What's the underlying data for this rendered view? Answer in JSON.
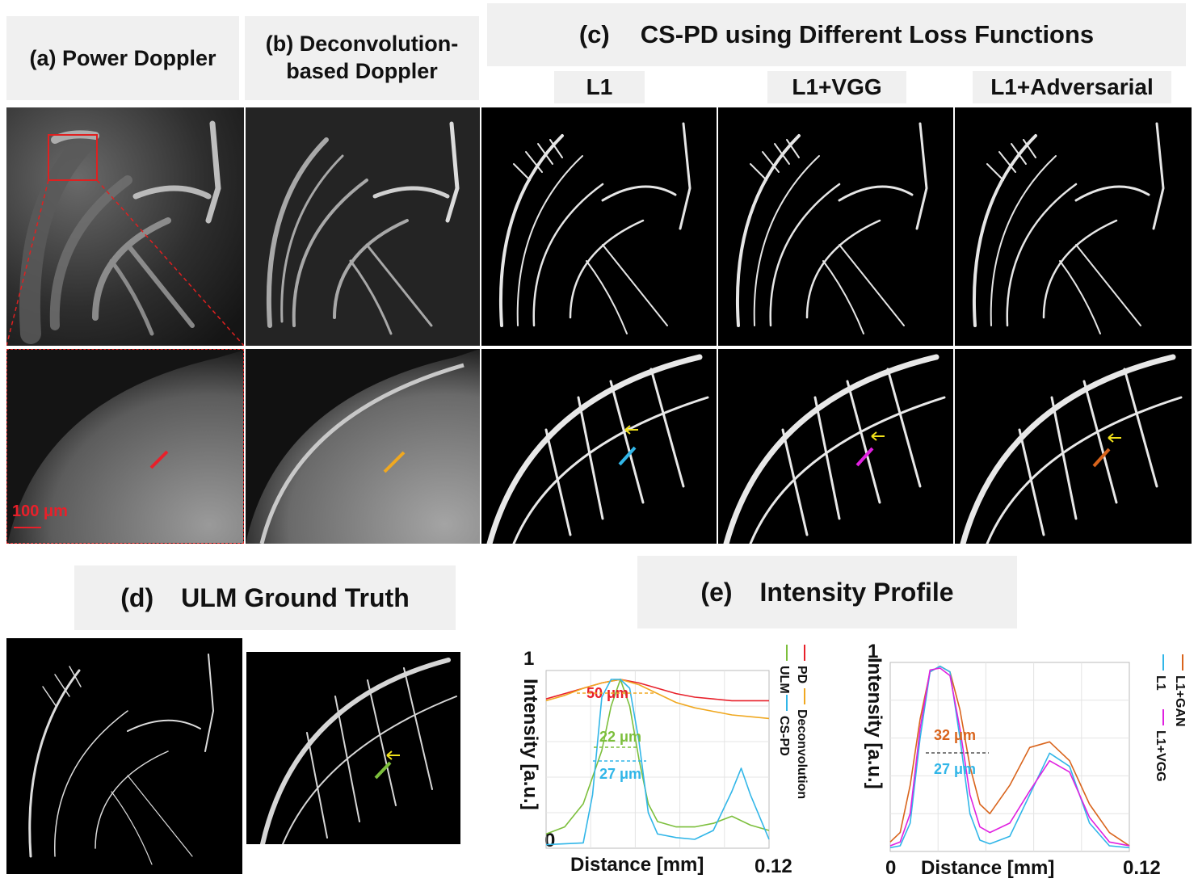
{
  "labels": {
    "a": "(a) Power Doppler",
    "b_line1": "(b) Deconvolution-",
    "b_line2": "based Doppler",
    "c_prefix": "(c)",
    "c_title": "CS-PD using Different Loss Functions",
    "c_l1": "L1",
    "c_l1vgg": "L1+VGG",
    "c_l1adv": "L1+Adversarial",
    "d_prefix": "(d)",
    "d_title": "ULM Ground Truth",
    "e_prefix": "(e)",
    "e_title": "Intensity Profile"
  },
  "scale_bar": "100 μm",
  "colors": {
    "pd": "#e8202a",
    "deconvolution": "#f0a820",
    "ulm": "#7cbf3c",
    "cspd": "#31b6e8",
    "l1": "#31b6e8",
    "l1vgg": "#e020e0",
    "l1gan": "#d9641c",
    "arrow": "#f2e21a",
    "zoom_box": "#e02020"
  },
  "chart_data": [
    {
      "type": "line",
      "ylabel": "Intensity [a.u.]",
      "xlabel": "Distance [mm]",
      "xlim": [
        0,
        0.12
      ],
      "ylim": [
        0,
        1
      ],
      "x_tick_labels": [
        "0",
        "0.12"
      ],
      "y_tick_labels": [
        "1"
      ],
      "series": [
        {
          "name": "PD",
          "key": "pd",
          "x": [
            0,
            0.01,
            0.02,
            0.03,
            0.04,
            0.05,
            0.06,
            0.07,
            0.08,
            0.09,
            0.1,
            0.11,
            0.12
          ],
          "values": [
            0.84,
            0.87,
            0.9,
            0.93,
            0.95,
            0.93,
            0.9,
            0.87,
            0.85,
            0.84,
            0.83,
            0.83,
            0.83
          ]
        },
        {
          "name": "Deconvolution",
          "key": "deconvolution",
          "x": [
            0,
            0.01,
            0.02,
            0.03,
            0.04,
            0.05,
            0.06,
            0.07,
            0.08,
            0.09,
            0.1,
            0.11,
            0.12
          ],
          "values": [
            0.83,
            0.86,
            0.9,
            0.93,
            0.95,
            0.92,
            0.87,
            0.82,
            0.79,
            0.77,
            0.75,
            0.74,
            0.73
          ]
        },
        {
          "name": "ULM",
          "key": "ulm",
          "x": [
            0,
            0.01,
            0.02,
            0.03,
            0.035,
            0.04,
            0.045,
            0.05,
            0.055,
            0.06,
            0.07,
            0.08,
            0.09,
            0.1,
            0.11,
            0.12
          ],
          "values": [
            0.08,
            0.12,
            0.25,
            0.55,
            0.8,
            0.95,
            0.8,
            0.5,
            0.25,
            0.15,
            0.12,
            0.12,
            0.14,
            0.18,
            0.13,
            0.1
          ]
        },
        {
          "name": "CS-PD",
          "key": "cspd",
          "x": [
            0,
            0.02,
            0.025,
            0.03,
            0.035,
            0.04,
            0.045,
            0.05,
            0.055,
            0.06,
            0.07,
            0.08,
            0.09,
            0.1,
            0.105,
            0.11,
            0.12
          ],
          "values": [
            0.02,
            0.03,
            0.3,
            0.85,
            0.95,
            0.95,
            0.9,
            0.6,
            0.2,
            0.08,
            0.06,
            0.05,
            0.1,
            0.32,
            0.45,
            0.3,
            0.05
          ]
        }
      ],
      "annotations": [
        {
          "text": "50 μm",
          "color": "pd"
        },
        {
          "text": "22 μm",
          "color": "ulm"
        },
        {
          "text": "27 μm",
          "color": "cspd"
        }
      ]
    },
    {
      "type": "line",
      "ylabel": "Intensity [a.u.]",
      "xlabel": "Distance [mm]",
      "xlim": [
        0,
        0.12
      ],
      "ylim": [
        0,
        1
      ],
      "x_tick_labels": [
        "0",
        "0.12"
      ],
      "y_tick_labels": [
        "1"
      ],
      "series": [
        {
          "name": "L1+GAN",
          "key": "l1gan",
          "x": [
            0,
            0.005,
            0.01,
            0.015,
            0.02,
            0.025,
            0.03,
            0.035,
            0.04,
            0.045,
            0.05,
            0.06,
            0.07,
            0.08,
            0.09,
            0.1,
            0.11,
            0.12
          ],
          "values": [
            0.05,
            0.1,
            0.35,
            0.7,
            0.95,
            0.98,
            0.95,
            0.75,
            0.45,
            0.25,
            0.2,
            0.35,
            0.55,
            0.58,
            0.48,
            0.25,
            0.1,
            0.03
          ]
        },
        {
          "name": "L1",
          "key": "l1",
          "x": [
            0,
            0.005,
            0.01,
            0.015,
            0.02,
            0.025,
            0.03,
            0.035,
            0.04,
            0.045,
            0.05,
            0.06,
            0.07,
            0.08,
            0.09,
            0.1,
            0.11,
            0.12
          ],
          "values": [
            0.02,
            0.03,
            0.15,
            0.6,
            0.95,
            0.98,
            0.95,
            0.6,
            0.2,
            0.06,
            0.04,
            0.08,
            0.3,
            0.52,
            0.45,
            0.15,
            0.03,
            0.02
          ]
        },
        {
          "name": "L1+VGG",
          "key": "l1vgg",
          "x": [
            0,
            0.005,
            0.01,
            0.015,
            0.02,
            0.025,
            0.03,
            0.035,
            0.04,
            0.045,
            0.05,
            0.06,
            0.07,
            0.08,
            0.09,
            0.1,
            0.11,
            0.12
          ],
          "values": [
            0.03,
            0.05,
            0.2,
            0.65,
            0.96,
            0.97,
            0.93,
            0.65,
            0.3,
            0.13,
            0.1,
            0.15,
            0.32,
            0.48,
            0.42,
            0.18,
            0.05,
            0.03
          ]
        }
      ],
      "annotations": [
        {
          "text": "32 μm",
          "color": "l1gan"
        },
        {
          "text": "27 μm",
          "color": "l1"
        }
      ]
    }
  ]
}
